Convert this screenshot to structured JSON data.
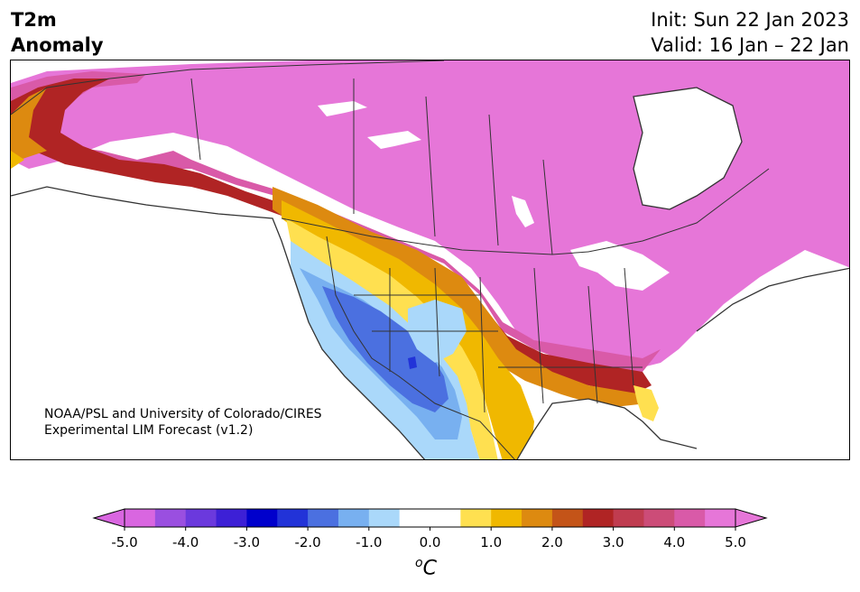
{
  "header": {
    "title_line1": "T2m",
    "title_line2": "Anomaly",
    "init": "Init: Sun 22 Jan 2023",
    "valid": "Valid: 16 Jan – 22 Jan"
  },
  "credit": {
    "line1": "NOAA/PSL and University of Colorado/CIRES",
    "line2": "Experimental LIM Forecast (v1.2)"
  },
  "colorbar": {
    "units": "C",
    "units_sup": "o",
    "ticks": [
      "-5.0",
      "-4.0",
      "-3.0",
      "-2.0",
      "-1.0",
      "0.0",
      "1.0",
      "2.0",
      "3.0",
      "4.0",
      "5.0"
    ],
    "colors": [
      "#d966e0",
      "#9a4fe0",
      "#6b39dd",
      "#3d20d6",
      "#0000cc",
      "#2233d8",
      "#4b70e0",
      "#78b0f0",
      "#aad8fa",
      "#ffffff",
      "#ffffff",
      "#ffe050",
      "#f0b800",
      "#dd8a10",
      "#c45418",
      "#b02424",
      "#c03c50",
      "#cc4c78",
      "#d95aa8",
      "#e676d8"
    ],
    "under_color": "#d966e0",
    "over_color": "#e676d8"
  },
  "map": {
    "colors": {
      "magenta": "#e676d8",
      "pink": "#d95aa8",
      "rose": "#cc4c78",
      "red": "#b02424",
      "darkorange": "#c45418",
      "orange": "#dd8a10",
      "gold": "#f0b800",
      "yellow": "#ffe050",
      "lightblue": "#aad8fa",
      "skyblue": "#78b0f0",
      "blue": "#4b70e0",
      "darkblue": "#2233d8",
      "border": "#333333"
    }
  }
}
